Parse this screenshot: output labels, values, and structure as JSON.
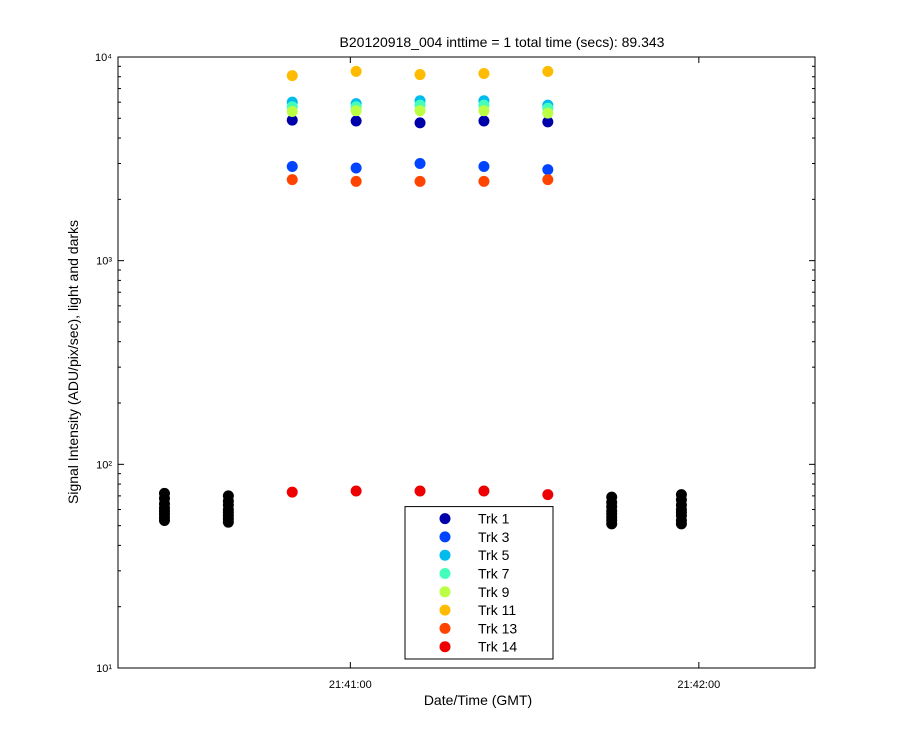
{
  "chart_data": {
    "type": "scatter",
    "title": "B20120918_004 inttime = 1 total time (secs): 89.343",
    "xlabel": "Date/Time (GMT)",
    "ylabel": "Signal Intensity (ADU/pix/sec), light and darks",
    "log_y": true,
    "xlim": [
      "21:40:20",
      "21:42:20"
    ],
    "xticks": [
      "21:41:00",
      "21:42:00"
    ],
    "ylim": [
      10,
      10000
    ],
    "yticks": [
      {
        "value": 10,
        "label": "10¹"
      },
      {
        "value": 100,
        "label": "10²"
      },
      {
        "value": 1000,
        "label": "10³"
      },
      {
        "value": 10000,
        "label": "10⁴"
      }
    ],
    "x": [
      "21:40:50",
      "21:41:01",
      "21:41:12",
      "21:41:23",
      "21:41:34"
    ],
    "series": [
      {
        "name": "Trk 1",
        "color": "#0000aa",
        "values": [
          4900,
          4850,
          4750,
          4850,
          4800
        ]
      },
      {
        "name": "Trk 3",
        "color": "#0044ff",
        "values": [
          2900,
          2850,
          3000,
          2900,
          2800
        ]
      },
      {
        "name": "Trk 5",
        "color": "#00bbee",
        "values": [
          6000,
          5900,
          6100,
          6100,
          5800
        ]
      },
      {
        "name": "Trk 7",
        "color": "#44ffbb",
        "values": [
          5700,
          5700,
          5800,
          5800,
          5600
        ]
      },
      {
        "name": "Trk 9",
        "color": "#bbff44",
        "values": [
          5400,
          5450,
          5450,
          5450,
          5300
        ]
      },
      {
        "name": "Trk 11",
        "color": "#ffbb00",
        "values": [
          8100,
          8500,
          8200,
          8300,
          8500
        ]
      },
      {
        "name": "Trk 13",
        "color": "#ff4400",
        "values": [
          2500,
          2450,
          2450,
          2450,
          2500
        ]
      },
      {
        "name": "Trk 14",
        "color": "#ee0000",
        "values": [
          73,
          74,
          74,
          74,
          71
        ]
      }
    ],
    "darks": {
      "color": "#000000",
      "x": [
        "21:40:28",
        "21:40:28",
        "21:40:28",
        "21:40:28",
        "21:40:28",
        "21:40:28",
        "21:40:28",
        "21:40:28",
        "21:40:39",
        "21:40:39",
        "21:40:39",
        "21:40:39",
        "21:40:39",
        "21:40:39",
        "21:40:39",
        "21:40:39",
        "21:41:45",
        "21:41:45",
        "21:41:45",
        "21:41:45",
        "21:41:45",
        "21:41:45",
        "21:41:45",
        "21:41:45",
        "21:41:57",
        "21:41:57",
        "21:41:57",
        "21:41:57",
        "21:41:57",
        "21:41:57",
        "21:41:57",
        "21:41:57"
      ],
      "values": [
        72,
        68,
        64,
        61,
        59,
        57,
        55,
        53,
        70,
        66,
        63,
        60,
        58,
        56,
        54,
        52,
        69,
        65,
        62,
        59,
        57,
        55,
        53,
        51,
        71,
        67,
        63,
        60,
        58,
        56,
        53,
        51
      ]
    },
    "legend": "bottom-center"
  }
}
